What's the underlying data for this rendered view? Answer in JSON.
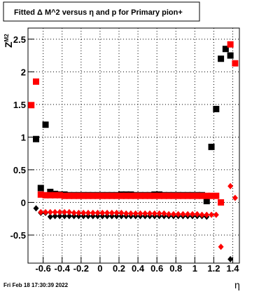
{
  "chart_data": {
    "type": "scatter",
    "title": "Fitted Δ M^2 versus η and p for Primary pion+",
    "x_label": "η",
    "y_label": "Z",
    "y_label_subscript": "M2",
    "footer": "Fri Feb 18 17:30:39 2022",
    "xlim": [
      -0.76,
      1.47
    ],
    "ylim": [
      -0.93,
      2.67
    ],
    "xticks": [
      -0.6,
      -0.4,
      -0.2,
      0,
      0.2,
      0.4,
      0.6,
      0.8,
      1,
      1.2,
      1.4
    ],
    "yticks": [
      -0.5,
      0,
      0.5,
      1,
      1.5,
      2,
      2.5
    ],
    "grid": true,
    "x": [
      -0.725,
      -0.675,
      -0.625,
      -0.575,
      -0.525,
      -0.475,
      -0.425,
      -0.375,
      -0.325,
      -0.275,
      -0.225,
      -0.175,
      -0.125,
      -0.075,
      -0.025,
      0.025,
      0.075,
      0.125,
      0.175,
      0.225,
      0.275,
      0.325,
      0.375,
      0.425,
      0.475,
      0.525,
      0.575,
      0.625,
      0.675,
      0.725,
      0.775,
      0.825,
      0.875,
      0.925,
      0.975,
      1.025,
      1.075,
      1.125,
      1.175,
      1.225,
      1.275,
      1.325,
      1.375,
      1.425
    ],
    "series": [
      {
        "name": "black-square",
        "color": "#000000",
        "marker": "square",
        "values": [
          null,
          0.97,
          0.22,
          1.19,
          0.16,
          0.13,
          0.12,
          0.12,
          0.11,
          0.11,
          0.11,
          0.11,
          0.11,
          0.11,
          0.11,
          0.11,
          0.11,
          0.11,
          0.11,
          0.12,
          0.12,
          0.12,
          0.11,
          0.11,
          0.11,
          0.11,
          0.12,
          0.12,
          0.11,
          0.11,
          0.11,
          0.11,
          0.11,
          0.11,
          0.11,
          0.11,
          0.11,
          0.02,
          0.85,
          1.43,
          2.2,
          2.35,
          2.25,
          null
        ]
      },
      {
        "name": "red-square",
        "color": "#ff0000",
        "marker": "square",
        "values": [
          1.49,
          1.85,
          0.12,
          0.11,
          0.11,
          0.11,
          0.11,
          0.1,
          0.1,
          0.1,
          0.1,
          0.1,
          0.1,
          0.1,
          0.1,
          0.1,
          0.1,
          0.1,
          0.1,
          0.1,
          0.1,
          0.1,
          0.1,
          0.1,
          0.1,
          0.1,
          0.1,
          0.1,
          0.1,
          0.1,
          0.1,
          0.1,
          0.1,
          0.1,
          0.1,
          0.1,
          0.1,
          0.1,
          0.1,
          0.1,
          0.0,
          null,
          2.42,
          2.13
        ]
      },
      {
        "name": "black-diamond",
        "color": "#000000",
        "marker": "diamond",
        "values": [
          null,
          -0.09,
          -0.16,
          -0.16,
          -0.22,
          -0.21,
          -0.21,
          -0.21,
          -0.21,
          -0.21,
          -0.21,
          -0.21,
          -0.21,
          -0.21,
          -0.21,
          -0.21,
          -0.21,
          -0.21,
          -0.21,
          -0.21,
          -0.21,
          -0.21,
          -0.21,
          -0.21,
          -0.21,
          -0.21,
          -0.21,
          -0.21,
          -0.21,
          -0.21,
          -0.21,
          -0.21,
          -0.21,
          -0.21,
          -0.21,
          -0.21,
          -0.21,
          -0.22,
          null,
          null,
          null,
          null,
          -0.87,
          null
        ]
      },
      {
        "name": "red-diamond",
        "color": "#ff0000",
        "marker": "diamond",
        "values": [
          null,
          null,
          -0.15,
          -0.15,
          -0.15,
          -0.15,
          -0.15,
          -0.15,
          -0.15,
          -0.16,
          -0.16,
          -0.16,
          -0.16,
          -0.16,
          -0.16,
          -0.16,
          -0.16,
          -0.16,
          -0.16,
          -0.16,
          -0.17,
          -0.17,
          -0.17,
          -0.17,
          -0.17,
          -0.17,
          -0.17,
          -0.17,
          -0.17,
          -0.18,
          -0.18,
          -0.18,
          -0.18,
          -0.18,
          -0.18,
          -0.18,
          -0.19,
          -0.19,
          -0.19,
          -0.19,
          -0.68,
          null,
          0.25,
          0.07
        ]
      }
    ]
  }
}
